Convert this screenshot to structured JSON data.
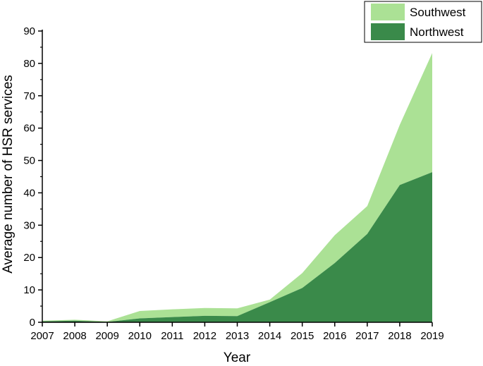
{
  "chart_data": {
    "type": "area",
    "stacked": true,
    "x": [
      2007,
      2008,
      2009,
      2010,
      2011,
      2012,
      2013,
      2014,
      2015,
      2016,
      2017,
      2018,
      2019
    ],
    "x_tick_labels": [
      "2007",
      "2008",
      "2009",
      "2010",
      "2011",
      "2012",
      "2013",
      "2014",
      "2015",
      "2016",
      "2017",
      "2018",
      "2019"
    ],
    "series": [
      {
        "name": "Northwest",
        "color": "#3a8a4a",
        "values": [
          0.3,
          0.5,
          0.1,
          1.2,
          1.6,
          2.0,
          1.9,
          6.2,
          10.6,
          18.3,
          27.3,
          42.4,
          46.4
        ]
      },
      {
        "name": "Southwest",
        "color": "#abe195",
        "values": [
          0.2,
          0.3,
          0.2,
          2.3,
          2.4,
          2.4,
          2.4,
          0.8,
          4.6,
          8.6,
          8.6,
          18.6,
          36.8
        ]
      }
    ],
    "xlabel": "Year",
    "ylabel": "Average number of HSR services",
    "xlim": [
      2007,
      2019
    ],
    "ylim": [
      0,
      90
    ],
    "y_ticks": [
      0,
      10,
      20,
      30,
      40,
      50,
      60,
      70,
      80,
      90
    ],
    "grid": false,
    "legend_position": "top-right"
  }
}
